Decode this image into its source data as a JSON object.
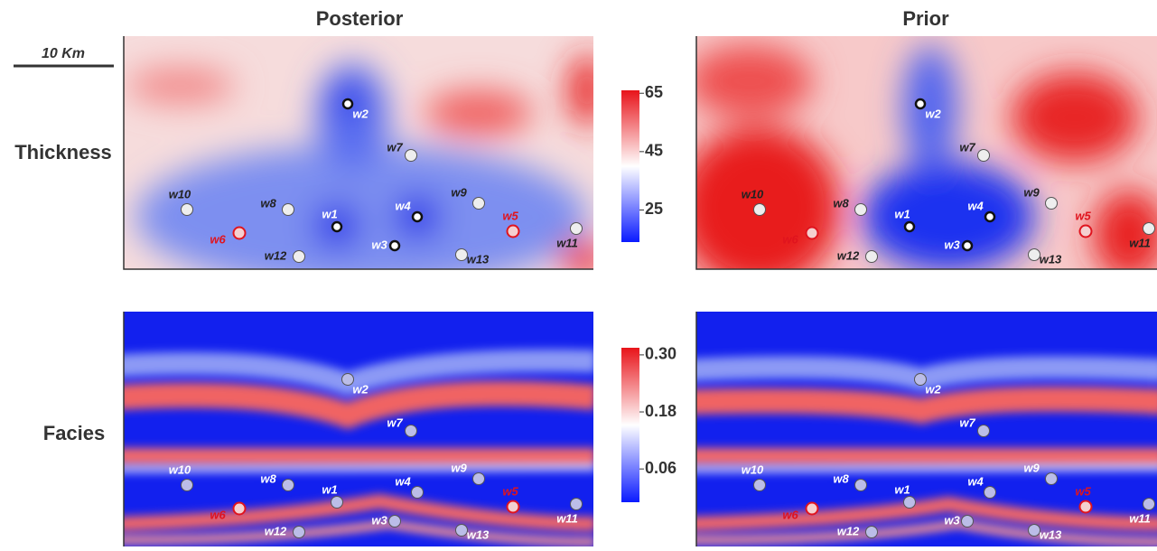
{
  "columns": [
    "Posterior",
    "Prior"
  ],
  "rows": [
    "Thickness",
    "Facies"
  ],
  "scale_bar": "10 Km",
  "colorbars": [
    {
      "lim": [
        14,
        66
      ],
      "ticks": [
        65,
        45,
        25
      ]
    },
    {
      "lim": [
        -0.01,
        0.315
      ],
      "ticks": [
        {
          "value": 0.3,
          "label": "0.30"
        },
        0.18,
        0.06
      ]
    }
  ],
  "wells": [
    {
      "name": "w1",
      "color": "#222"
    },
    {
      "name": "w2",
      "color": "#222"
    },
    {
      "name": "w3",
      "color": "#222"
    },
    {
      "name": "w4",
      "color": "#222"
    },
    {
      "name": "w5",
      "color": "#e0141e"
    },
    {
      "name": "w6",
      "color": "#e0141e"
    },
    {
      "name": "w7",
      "color": "#222"
    },
    {
      "name": "w8",
      "color": "#222"
    },
    {
      "name": "w9",
      "color": "#222"
    },
    {
      "name": "w10",
      "color": "#222"
    },
    {
      "name": "w11",
      "color": "#222"
    },
    {
      "name": "w12",
      "color": "#222"
    },
    {
      "name": "w13",
      "color": "#222"
    }
  ]
}
